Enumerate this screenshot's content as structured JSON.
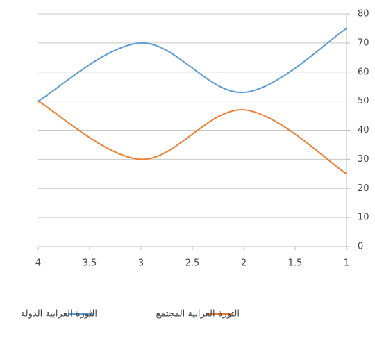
{
  "chart_data": {
    "type": "line",
    "x": [
      4,
      3,
      2,
      1
    ],
    "xlim": [
      4,
      1
    ],
    "xticks": [
      4,
      3.5,
      3,
      2.5,
      2,
      1.5,
      1
    ],
    "ylim": [
      0,
      80
    ],
    "yticks": [
      0,
      10,
      20,
      30,
      40,
      50,
      60,
      70,
      80
    ],
    "grid": true,
    "smooth": true,
    "y_axis_side": "right",
    "legend": "bottom",
    "series": [
      {
        "name": "الثورة العرابية المجتمع",
        "color": "#ed7d31",
        "values": [
          50,
          30,
          47,
          25
        ]
      },
      {
        "name": "الثورة العرابية الدولة",
        "color": "#5b9bd5",
        "values": [
          50,
          70,
          53,
          75
        ]
      }
    ]
  }
}
